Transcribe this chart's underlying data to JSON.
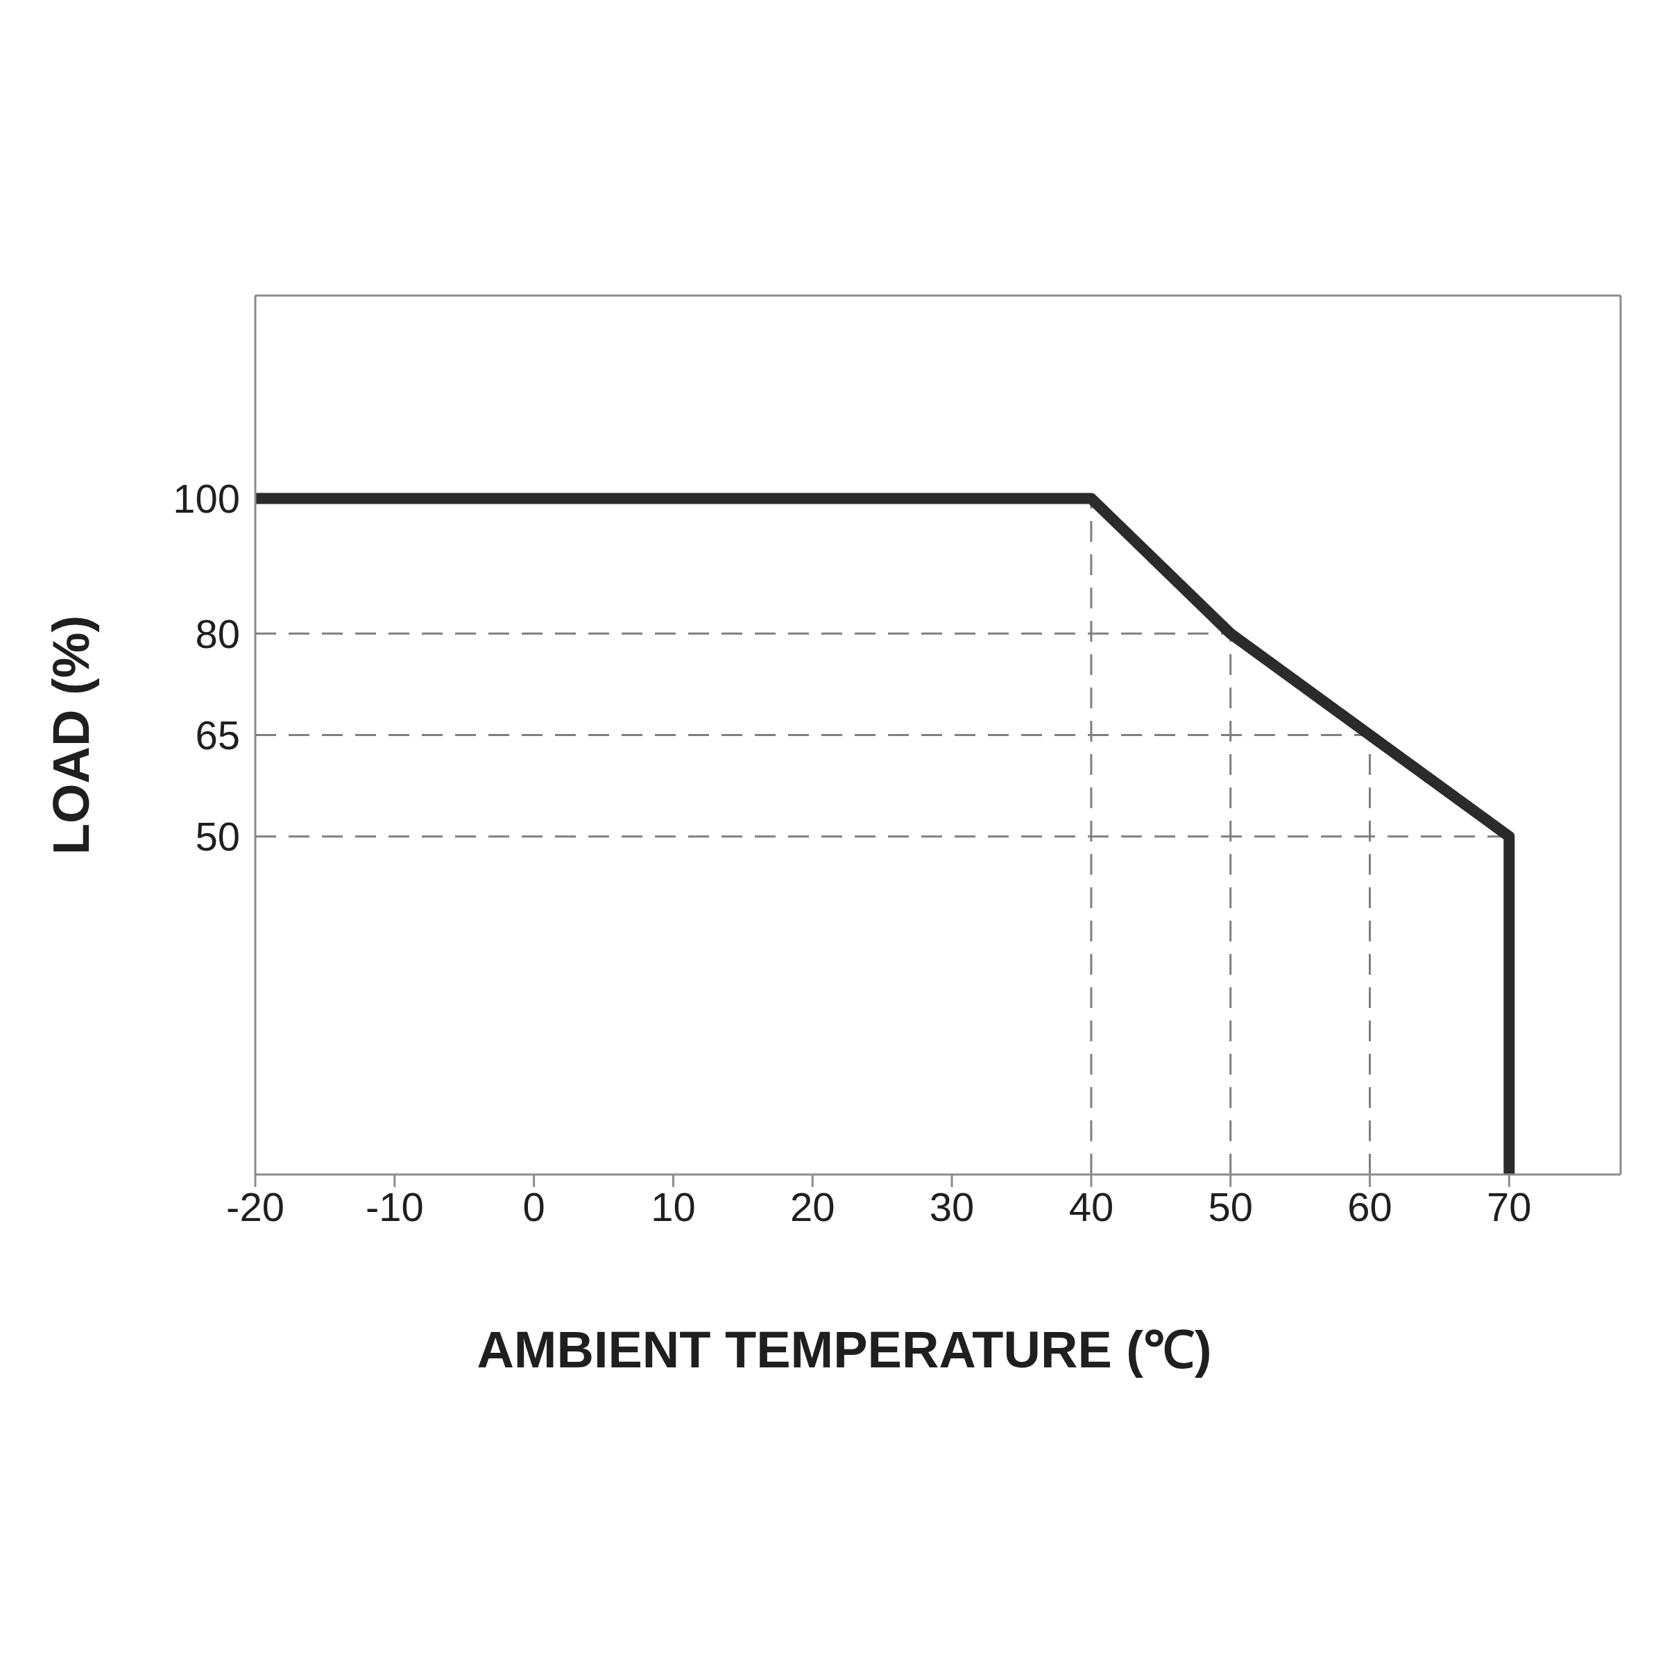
{
  "chart_data": {
    "type": "line",
    "xlabel": "AMBIENT TEMPERATURE (℃)",
    "ylabel": "LOAD (%)",
    "x": [
      -20,
      40,
      50,
      60,
      70,
      70
    ],
    "values": [
      100,
      100,
      80,
      65,
      50,
      0
    ],
    "color": "#2b2b2b",
    "xlim": [
      -20,
      78
    ],
    "xticks": [
      -20,
      -10,
      0,
      10,
      20,
      30,
      40,
      50,
      60,
      70
    ],
    "ylim": [
      0,
      130
    ],
    "yticks": [
      50,
      65,
      80,
      100
    ],
    "ref_lines": [
      {
        "axis": "y",
        "value": 80,
        "color": "#7f7f7f",
        "line_style": "dashed"
      },
      {
        "axis": "y",
        "value": 65,
        "color": "#7f7f7f",
        "line_style": "dashed"
      },
      {
        "axis": "y",
        "value": 50,
        "color": "#7f7f7f",
        "line_style": "dashed"
      },
      {
        "axis": "x",
        "value": 40,
        "color": "#7f7f7f",
        "line_style": "dashed"
      },
      {
        "axis": "x",
        "value": 50,
        "color": "#7f7f7f",
        "line_style": "dashed"
      },
      {
        "axis": "x",
        "value": 60,
        "color": "#7f7f7f",
        "line_style": "dashed"
      }
    ]
  }
}
